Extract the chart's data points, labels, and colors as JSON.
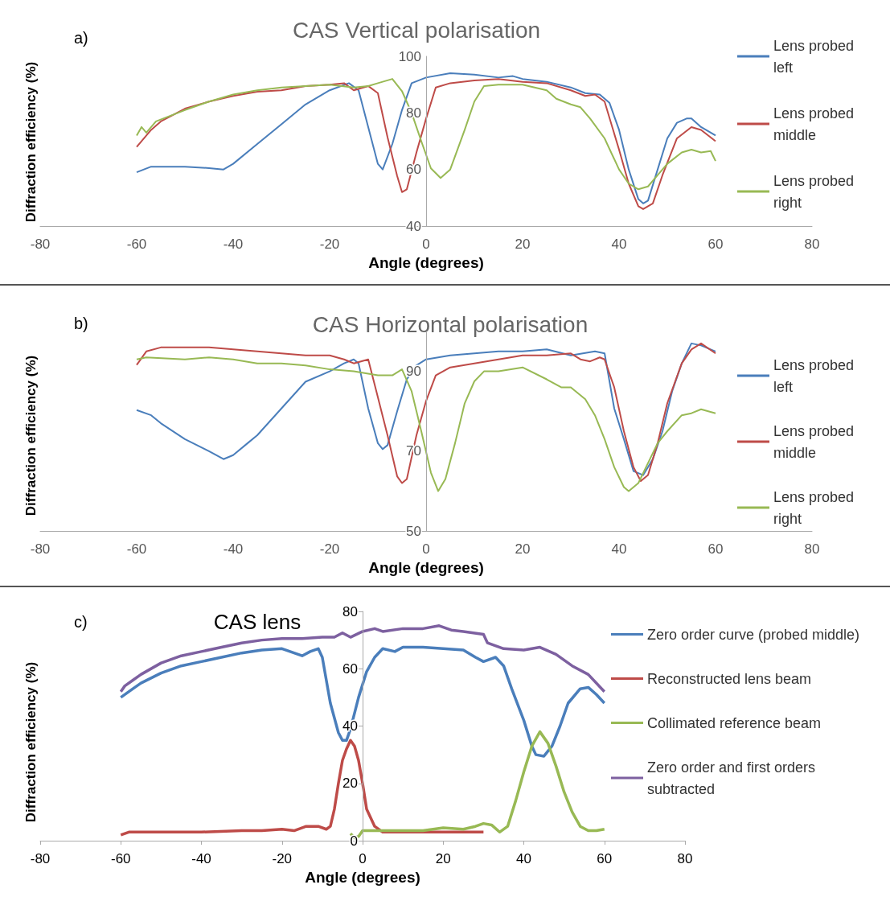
{
  "chart_data": [
    {
      "type": "line",
      "title": "CAS Vertical polarisation",
      "annotations": [
        "a)"
      ],
      "xlabel": "Angle (degrees)",
      "ylabel": "Diffraction efficiency (%)",
      "xlim": [
        -80,
        80
      ],
      "xticks": [
        -80,
        -60,
        -40,
        -20,
        0,
        20,
        40,
        60,
        80
      ],
      "ylim": [
        40,
        100
      ],
      "yticks": [
        40,
        60,
        80,
        100
      ],
      "grid": false,
      "legend": "right",
      "marker": "none",
      "line_style": "solid",
      "series": [
        {
          "name": "Lens probed left",
          "color": "#4a7ebb",
          "x": [
            -60,
            -57,
            -50,
            -45,
            -42,
            -40,
            -35,
            -30,
            -25,
            -20,
            -16,
            -14,
            -12,
            -10,
            -9,
            -7,
            -5,
            -3,
            0,
            5,
            10,
            15,
            18,
            20,
            25,
            30,
            33,
            36,
            38,
            40,
            42,
            44,
            45,
            46,
            48,
            50,
            52,
            54,
            55,
            57,
            60
          ],
          "values": [
            59,
            61,
            61,
            60.5,
            60,
            62,
            69,
            76,
            83,
            88,
            90.5,
            88,
            75,
            62,
            60,
            69,
            81,
            90.5,
            92.5,
            94,
            93.5,
            92.5,
            93,
            92,
            91,
            89,
            87,
            86.5,
            83.6,
            74,
            60,
            49.5,
            48,
            49,
            60,
            71,
            76.5,
            78,
            78,
            75,
            72
          ]
        },
        {
          "name": "Lens probed middle",
          "color": "#be4b48",
          "x": [
            -60,
            -57,
            -55,
            -50,
            -45,
            -40,
            -35,
            -30,
            -25,
            -20,
            -17,
            -15,
            -12,
            -10,
            -8,
            -6,
            -5,
            -4,
            -2,
            0,
            2,
            5,
            10,
            15,
            20,
            25,
            30,
            33,
            35,
            37,
            40,
            42,
            44,
            45,
            47,
            49,
            52,
            55,
            57,
            60
          ],
          "values": [
            68,
            74,
            77,
            81.5,
            84,
            86,
            87.5,
            88,
            89.5,
            90,
            90.5,
            88,
            89.5,
            87,
            71.4,
            57.7,
            52,
            53,
            66,
            78,
            89,
            90.5,
            91.5,
            92,
            91,
            90.5,
            88,
            86,
            86.5,
            84,
            67,
            55,
            47,
            46,
            48,
            58,
            71,
            75,
            74,
            70
          ]
        },
        {
          "name": "Lens probed right",
          "color": "#98b954",
          "x": [
            -60,
            -59,
            -58,
            -56,
            -50,
            -45,
            -40,
            -35,
            -30,
            -25,
            -20,
            -15,
            -12,
            -10,
            -7,
            -5,
            -3,
            -1,
            1,
            3,
            5,
            8,
            10,
            12,
            15,
            20,
            25,
            27,
            30,
            32,
            34,
            37,
            40,
            42,
            44,
            46,
            48,
            50,
            53,
            55,
            57,
            59,
            60
          ],
          "values": [
            72,
            75,
            73,
            77,
            81,
            84,
            86.5,
            88,
            89,
            89.5,
            90,
            89,
            89.5,
            90.5,
            92,
            87.7,
            80,
            70,
            60.4,
            57,
            60,
            74,
            84,
            89.5,
            90,
            90,
            88,
            85,
            83,
            82,
            78,
            71,
            60,
            55,
            53,
            54,
            58,
            62,
            66,
            67,
            66,
            66.5,
            63
          ]
        }
      ]
    },
    {
      "type": "line",
      "title": "CAS Horizontal polarisation",
      "annotations": [
        "b)"
      ],
      "xlabel": "Angle (degrees)",
      "ylabel": "Diffraction efficiency (%)",
      "xlim": [
        -80,
        80
      ],
      "xticks": [
        -80,
        -60,
        -40,
        -20,
        0,
        20,
        40,
        60,
        80
      ],
      "ylim": [
        50,
        100
      ],
      "yticks": [
        50,
        70,
        90
      ],
      "grid": false,
      "legend": "right",
      "marker": "none",
      "line_style": "solid",
      "series": [
        {
          "name": "Lens probed left",
          "color": "#4a7ebb",
          "x": [
            -60,
            -57,
            -55,
            -50,
            -45,
            -42,
            -40,
            -37,
            -35,
            -30,
            -25,
            -20,
            -17,
            -15,
            -14,
            -12,
            -10,
            -9,
            -8,
            -6,
            -4,
            -2,
            0,
            5,
            10,
            15,
            20,
            25,
            30,
            35,
            37,
            39,
            41,
            43,
            45,
            47,
            49,
            51,
            53,
            55,
            57,
            60
          ],
          "values": [
            80.3,
            79,
            77,
            73,
            70,
            68,
            69,
            72,
            74,
            80.7,
            87.4,
            90,
            92,
            93,
            92,
            80.7,
            72,
            70.5,
            71.5,
            80,
            88,
            91.5,
            93,
            94,
            94.5,
            95,
            95,
            95.5,
            94,
            95,
            94.5,
            80.7,
            73,
            65,
            64,
            68,
            75,
            85,
            92,
            97,
            96.5,
            95
          ]
        },
        {
          "name": "Lens probed middle",
          "color": "#be4b48",
          "x": [
            -60,
            -58,
            -55,
            -50,
            -45,
            -40,
            -35,
            -30,
            -25,
            -20,
            -17,
            -15,
            -12,
            -10,
            -8,
            -6,
            -5,
            -4,
            -2,
            0,
            2,
            5,
            10,
            15,
            20,
            25,
            30,
            32,
            34,
            36,
            37,
            39,
            41,
            43,
            44.5,
            46,
            48,
            50,
            53,
            55,
            57,
            60
          ],
          "values": [
            91.6,
            95,
            96,
            96,
            96,
            95.5,
            95,
            94.5,
            94,
            94,
            93,
            92,
            93,
            83.5,
            74,
            63.7,
            62,
            63,
            74,
            82.6,
            89,
            91,
            92,
            93,
            94,
            94,
            94.5,
            93,
            92.5,
            93.5,
            93,
            86,
            75,
            66,
            62.5,
            64,
            72,
            82,
            92,
            95.5,
            97,
            94.5
          ]
        },
        {
          "name": "Lens probed right",
          "color": "#98b954",
          "x": [
            -60,
            -58,
            -50,
            -45,
            -40,
            -35,
            -30,
            -25,
            -20,
            -15,
            -10,
            -7,
            -5,
            -3,
            -1,
            1,
            2.5,
            4,
            6,
            8,
            10,
            12,
            15,
            20,
            25,
            28,
            30,
            33,
            35,
            37,
            39,
            41,
            42,
            44,
            46,
            48,
            50,
            53,
            55,
            57,
            60
          ],
          "values": [
            93,
            93.5,
            93,
            93.5,
            93,
            92,
            92,
            91.5,
            90.5,
            90,
            89,
            89,
            90.5,
            85,
            75,
            64.6,
            60,
            63,
            72,
            82,
            87.5,
            90,
            90,
            91,
            88,
            86,
            86,
            83,
            79,
            73,
            66,
            61,
            60,
            62,
            67,
            72,
            75,
            79,
            79.5,
            80.5,
            79.5
          ]
        }
      ]
    },
    {
      "type": "line",
      "title": "CAS lens",
      "annotations": [
        "c)"
      ],
      "xlabel": "Angle (degrees)",
      "ylabel": "Diffraction efficiency (%)",
      "xlim": [
        -80,
        80
      ],
      "xticks": [
        -80,
        -60,
        -40,
        -20,
        0,
        20,
        40,
        60,
        80
      ],
      "ylim": [
        0,
        80
      ],
      "yticks": [
        0,
        20,
        40,
        60,
        80
      ],
      "grid": false,
      "legend": "right",
      "marker": "none",
      "line_style": "solid",
      "series": [
        {
          "name": "Zero order curve (probed middle)",
          "color": "#4a7ebb",
          "x": [
            -60,
            -57,
            -55,
            -50,
            -45,
            -40,
            -35,
            -30,
            -25,
            -20,
            -17,
            -15,
            -13,
            -11,
            -10,
            -8,
            -6,
            -5,
            -4,
            -3,
            -1,
            1,
            3,
            5,
            8,
            10,
            15,
            20,
            25,
            28,
            30,
            33,
            35,
            37,
            40,
            42,
            43,
            45,
            47,
            49,
            51,
            54,
            56,
            58,
            60
          ],
          "values": [
            50,
            53,
            55,
            58.5,
            61,
            62.5,
            64,
            65.5,
            66.5,
            67,
            65.5,
            64.5,
            66,
            67,
            64,
            48,
            37.7,
            35,
            35,
            39,
            50,
            59,
            64,
            67,
            66,
            67.5,
            67.5,
            67,
            66.5,
            64,
            62.5,
            64,
            61,
            53,
            42,
            33,
            30,
            29.5,
            33,
            40,
            48,
            53,
            53.5,
            51,
            48
          ]
        },
        {
          "name": "Reconstructed lens beam",
          "color": "#be4b48",
          "x": [
            -60,
            -58,
            -50,
            -40,
            -30,
            -25,
            -20,
            -17,
            -14,
            -11,
            -9,
            -8,
            -7,
            -6,
            -5,
            -4,
            -3,
            -2,
            -1,
            0,
            1,
            3,
            5,
            10,
            20,
            30
          ],
          "values": [
            2,
            3,
            3,
            3,
            3.5,
            3.5,
            4,
            3.5,
            5,
            5,
            4,
            5,
            11,
            20,
            28,
            32,
            35,
            33,
            28,
            20,
            11,
            5,
            3,
            3,
            3,
            3
          ]
        },
        {
          "name": "Collimated reference beam",
          "color": "#98b954",
          "x": [
            -3,
            -2,
            -1,
            0,
            5,
            10,
            15,
            20,
            25,
            28,
            30,
            32,
            34,
            36,
            38,
            40,
            42,
            44,
            46,
            48,
            50,
            52,
            54,
            56,
            58,
            60
          ],
          "values": [
            2.5,
            1,
            1.5,
            3.5,
            3.5,
            3.5,
            3.5,
            4.5,
            4,
            5,
            6,
            5.5,
            3,
            5,
            14,
            24,
            33,
            38,
            34,
            26,
            17,
            10,
            5,
            3.5,
            3.5,
            4
          ]
        },
        {
          "name": "Zero order and first orders subtracted",
          "color": "#7d60a0",
          "x": [
            -60,
            -59,
            -57,
            -55,
            -50,
            -45,
            -40,
            -35,
            -30,
            -25,
            -20,
            -15,
            -10,
            -7,
            -5,
            -3,
            0,
            3,
            5,
            10,
            15,
            19,
            22,
            25,
            30,
            31,
            35,
            40,
            44,
            48,
            52,
            56,
            60
          ],
          "values": [
            52,
            54,
            56,
            58,
            62,
            64.5,
            66,
            67.5,
            69,
            70,
            70.5,
            70.5,
            71,
            71,
            72.5,
            71,
            73,
            74,
            73,
            74,
            74,
            75,
            73.5,
            73,
            72,
            69,
            67,
            66.5,
            67.5,
            65,
            61,
            58,
            52
          ]
        }
      ]
    }
  ]
}
